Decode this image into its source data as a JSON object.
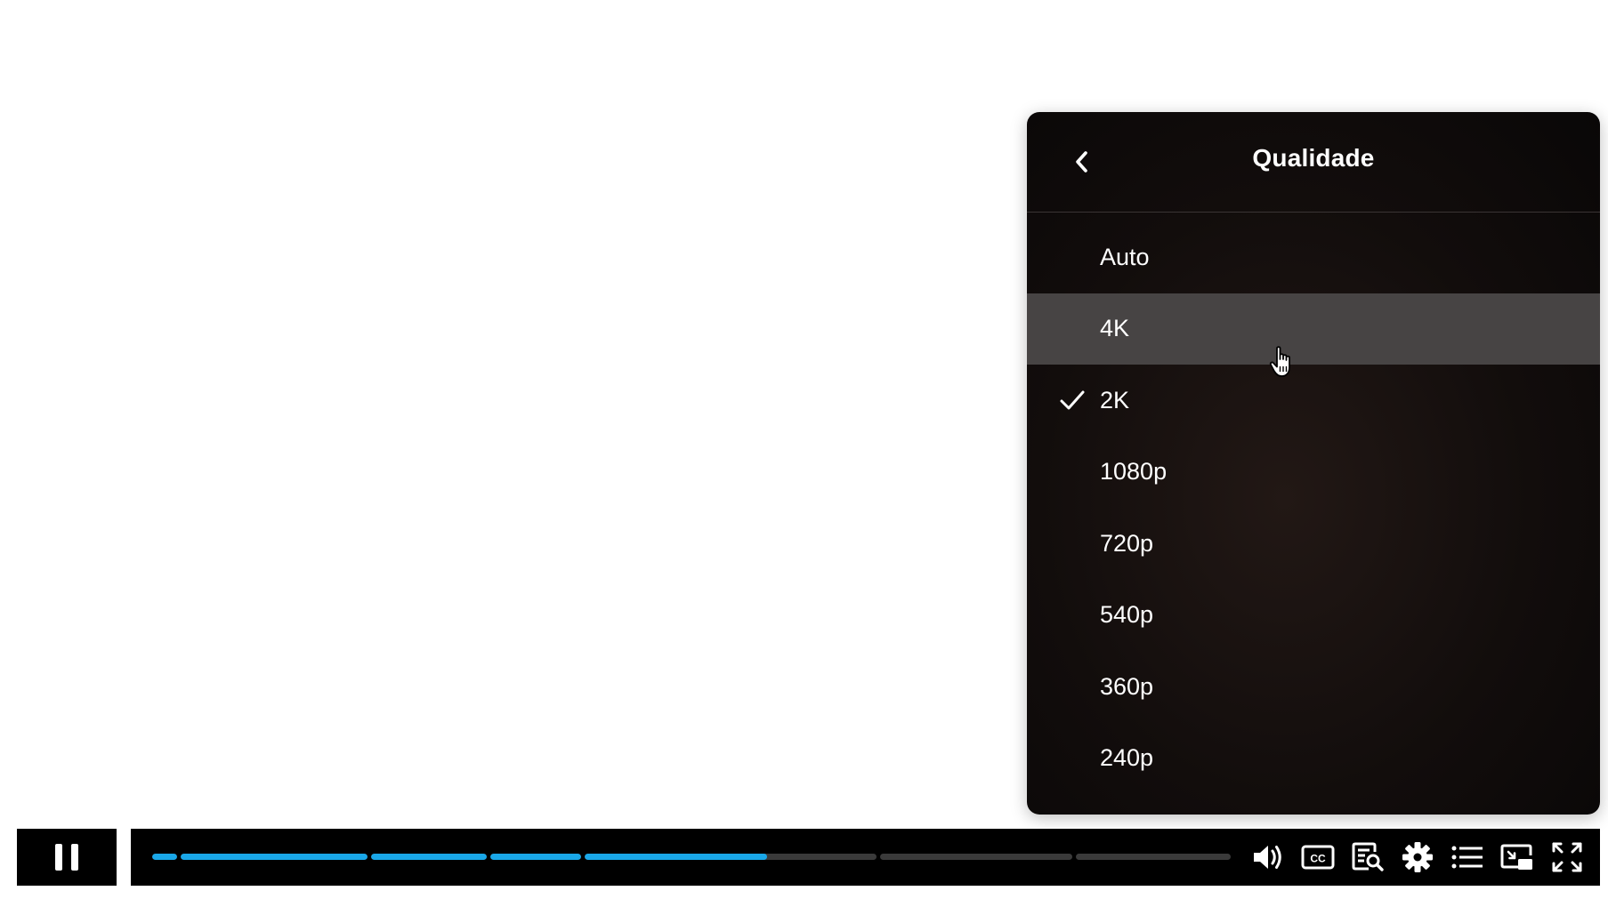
{
  "quality_menu": {
    "title": "Qualidade",
    "items": [
      {
        "label": "Auto",
        "selected": false,
        "hovered": false
      },
      {
        "label": "4K",
        "selected": false,
        "hovered": true
      },
      {
        "label": "2K",
        "selected": true,
        "hovered": false
      },
      {
        "label": "1080p",
        "selected": false,
        "hovered": false
      },
      {
        "label": "720p",
        "selected": false,
        "hovered": false
      },
      {
        "label": "540p",
        "selected": false,
        "hovered": false
      },
      {
        "label": "360p",
        "selected": false,
        "hovered": false
      },
      {
        "label": "240p",
        "selected": false,
        "hovered": false
      }
    ],
    "icons": {
      "back": "chevron-left-icon",
      "selected": "check-icon",
      "cursor": "hand-pointer-icon"
    }
  },
  "player": {
    "play_state": "playing",
    "progress_fraction": 0.57,
    "chapter_count": 7,
    "colors": {
      "progress_played": "#19a7e8",
      "progress_unplayed": "#3a3a3a",
      "menu_hover": "#474444",
      "bar_background": "#000000"
    },
    "controls": [
      {
        "name": "volume-icon"
      },
      {
        "name": "closed-captions-icon"
      },
      {
        "name": "transcript-search-icon"
      },
      {
        "name": "settings-gear-icon"
      },
      {
        "name": "chapters-list-icon"
      },
      {
        "name": "picture-in-picture-icon"
      },
      {
        "name": "fullscreen-icon"
      }
    ],
    "cc_text": "CC"
  }
}
